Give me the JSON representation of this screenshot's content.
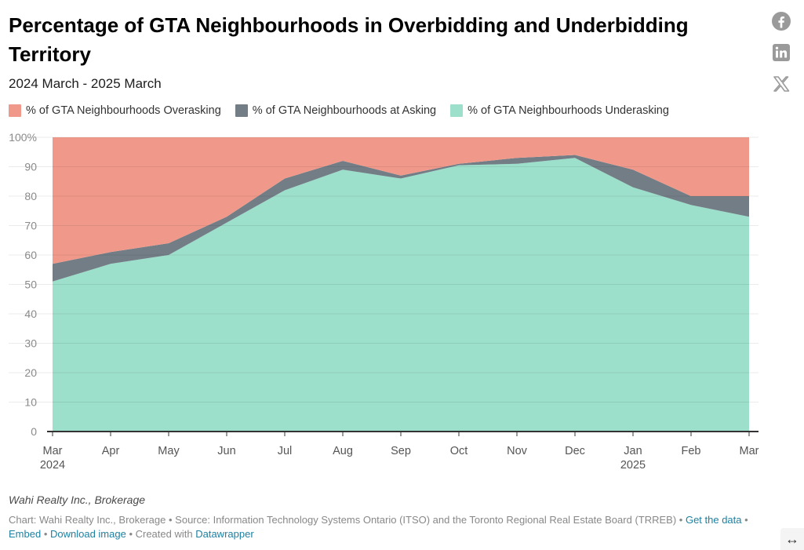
{
  "header": {
    "title": "Percentage of GTA Neighbourhoods in Overbidding and Underbidding Territory",
    "subtitle": "2024 March - 2025 March"
  },
  "social": {
    "facebook_icon": "facebook-icon",
    "linkedin_icon": "linkedin-icon",
    "x_icon": "x-twitter-icon"
  },
  "chart_data": {
    "type": "area",
    "stacked": true,
    "title": "Percentage of GTA Neighbourhoods in Overbidding and Underbidding Territory",
    "subtitle": "2024 March - 2025 March",
    "x": [
      "Mar",
      "Apr",
      "May",
      "Jun",
      "Jul",
      "Aug",
      "Sep",
      "Oct",
      "Nov",
      "Dec",
      "Jan",
      "Feb",
      "Mar"
    ],
    "x_sub_labels": [
      "2024",
      "",
      "",
      "",
      "",
      "",
      "",
      "",
      "",
      "",
      "2025",
      "",
      ""
    ],
    "series": [
      {
        "name": "% of GTA Neighbourhoods Underasking",
        "color": "#9cdfcb",
        "values": [
          51,
          57,
          60,
          71,
          82,
          89,
          86,
          90.5,
          91,
          93,
          83,
          77,
          73
        ]
      },
      {
        "name": "% of GTA Neighbourhoods at Asking",
        "color": "#737d86",
        "values": [
          6,
          4,
          4,
          2,
          4,
          3,
          1,
          0.5,
          2,
          1,
          6,
          3,
          7
        ]
      },
      {
        "name": "% of GTA Neighbourhoods Overasking",
        "color": "#f0998a",
        "values": [
          43,
          39,
          36,
          27,
          14,
          8,
          13,
          9,
          7,
          6,
          11,
          20,
          20
        ]
      }
    ],
    "legend_order": [
      "% of GTA Neighbourhoods Overasking",
      "% of GTA Neighbourhoods at Asking",
      "% of GTA Neighbourhoods Underasking"
    ],
    "ylim": [
      0,
      100
    ],
    "yticks": [
      0,
      10,
      20,
      30,
      40,
      50,
      60,
      70,
      80,
      90,
      100
    ],
    "ytick_labels": [
      "0",
      "10",
      "20",
      "30",
      "40",
      "50",
      "60",
      "70",
      "80",
      "90",
      "100%"
    ],
    "grid": true,
    "legend_position": "top-left",
    "xlabel": "",
    "ylabel": ""
  },
  "footer": {
    "byline": "Wahi Realty Inc., Brokerage",
    "chart_credit": "Chart: Wahi Realty Inc., Brokerage",
    "separator": " • ",
    "source": "Source: Information Technology Systems Ontario (ITSO) and the Toronto Regional Real Estate Board (TRREB)",
    "get_data_label": "Get the data",
    "embed_label": "Embed",
    "download_label": "Download image",
    "created_with": "Created with",
    "datawrapper_label": "Datawrapper"
  },
  "resize_icon": "↔"
}
